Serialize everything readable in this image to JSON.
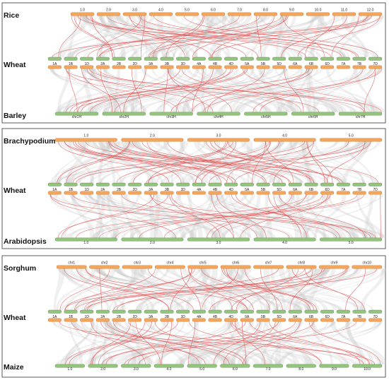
{
  "colors": {
    "orange": "#f2a55c",
    "orange_stroke": "#c8782f",
    "green": "#93c47d",
    "green_stroke": "#5b8e42",
    "red_link": "#e05252",
    "grey_link": "#c9c9c9",
    "panel_border": "#333333"
  },
  "wheat_chromosomes": [
    "1A",
    "1B",
    "1D",
    "2A",
    "2B",
    "2D",
    "3A",
    "3B",
    "3D",
    "4A",
    "4B",
    "4D",
    "5A",
    "5B",
    "5D",
    "6A",
    "6B",
    "6D",
    "7A",
    "7B",
    "7D"
  ],
  "panels": [
    {
      "id": "panel-1",
      "top_species": "Rice",
      "top_color": "orange",
      "top_chromosomes": [
        "1.0",
        "2.0",
        "3.0",
        "4.0",
        "5.0",
        "6.0",
        "7.0",
        "8.0",
        "9.0",
        "10.0",
        "11.0",
        "12.0"
      ],
      "middle_species": "Wheat",
      "bottom_species": "Barley",
      "bottom_color": "green",
      "bottom_chromosomes": [
        "chr1H",
        "chr2H",
        "chr3H",
        "chr4H",
        "chr5H",
        "chr6H",
        "chr7H"
      ]
    },
    {
      "id": "panel-2",
      "top_species": "Brachypodium",
      "top_color": "orange",
      "top_chromosomes": [
        "1.0",
        "2.0",
        "3.0",
        "4.0",
        "5.0"
      ],
      "middle_species": "Wheat",
      "bottom_species": "Arabidopsis",
      "bottom_color": "green",
      "bottom_chromosomes": [
        "1.0",
        "2.0",
        "3.0",
        "4.0",
        "5.0"
      ]
    },
    {
      "id": "panel-3",
      "top_species": "Sorghum",
      "top_color": "orange",
      "top_chromosomes": [
        "chr1",
        "chr2",
        "chr3",
        "chr4",
        "chr5",
        "chr6",
        "chr7",
        "chr8",
        "chr9",
        "chr10"
      ],
      "middle_species": "Wheat",
      "bottom_species": "Maize",
      "bottom_color": "green",
      "bottom_chromosomes": [
        "1.0",
        "2.0",
        "3.0",
        "4.0",
        "5.0",
        "6.0",
        "7.0",
        "8.0",
        "9.0",
        "10.0"
      ]
    }
  ]
}
